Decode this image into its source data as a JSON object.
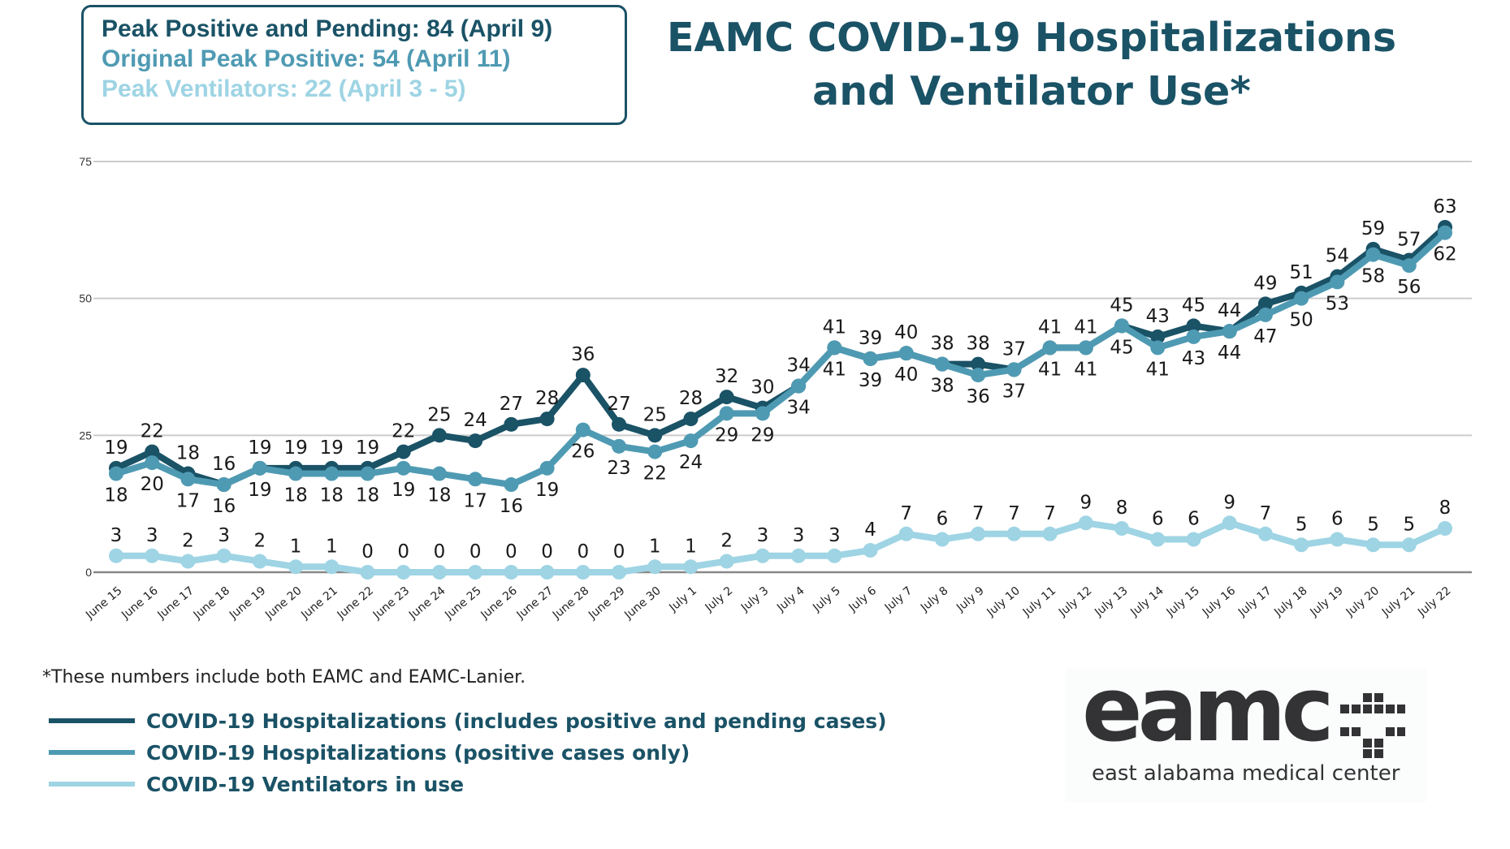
{
  "peaks": {
    "line1": {
      "text": "Peak Positive and Pending: 84 (April 9)",
      "color": "#1a5266"
    },
    "line2": {
      "text": "Original Peak Positive: 54 (April 11)",
      "color": "#4f9ab3"
    },
    "line3": {
      "text": "Peak Ventilators: 22 (April 3 - 5)",
      "color": "#9ed4e4"
    }
  },
  "title": {
    "line1": "EAMC COVID-19 Hospitalizations",
    "line2": "and Ventilator Use*"
  },
  "footnote": "*These numbers include both EAMC and EAMC-Lanier.",
  "legend": [
    {
      "label": "COVID-19 Hospitalizations (includes positive and pending cases)",
      "color": "#1a5266"
    },
    {
      "label": "COVID-19 Hospitalizations (positive cases only)",
      "color": "#4f9ab3"
    },
    {
      "label": "COVID-19 Ventilators in use",
      "color": "#9ed4e4"
    }
  ],
  "logo": {
    "wordmark": "eamc",
    "subtitle": "east alabama medical center",
    "icon": "medical-cross-grid-icon"
  },
  "chart_data": {
    "type": "line",
    "title": "EAMC COVID-19 Hospitalizations and Ventilator Use*",
    "xlabel": "",
    "ylabel": "",
    "ylim": [
      0,
      75
    ],
    "yticks": [
      0,
      25,
      50,
      75
    ],
    "grid": true,
    "legend_position": "bottom-left",
    "categories": [
      "June 15",
      "June 16",
      "June 17",
      "June 18",
      "June 19",
      "June 20",
      "June 21",
      "June 22",
      "June 23",
      "June 24",
      "June 25",
      "June 26",
      "June 27",
      "June 28",
      "June 29",
      "June 30",
      "July 1",
      "July 2",
      "July 3",
      "July 4",
      "July 5",
      "July 6",
      "July 7",
      "July 8",
      "July 9",
      "July 10",
      "July 11",
      "July 12",
      "July 13",
      "July 14",
      "July 15",
      "July 16",
      "July 17",
      "July 18",
      "July 19",
      "July 20",
      "July 21",
      "July 22"
    ],
    "series": [
      {
        "name": "COVID-19 Hospitalizations (includes positive and pending cases)",
        "color": "#1a5266",
        "label_position": "above",
        "values": [
          19,
          22,
          18,
          16,
          19,
          19,
          19,
          19,
          22,
          25,
          24,
          27,
          28,
          36,
          27,
          25,
          28,
          32,
          30,
          34,
          41,
          39,
          40,
          38,
          38,
          37,
          41,
          41,
          45,
          43,
          45,
          44,
          49,
          51,
          54,
          59,
          57,
          63
        ]
      },
      {
        "name": "COVID-19 Hospitalizations (positive cases only)",
        "color": "#4f9ab3",
        "label_position": "below",
        "values": [
          18,
          20,
          17,
          16,
          19,
          18,
          18,
          18,
          19,
          18,
          17,
          16,
          19,
          26,
          23,
          22,
          24,
          29,
          29,
          34,
          41,
          39,
          40,
          38,
          36,
          37,
          41,
          41,
          45,
          41,
          43,
          44,
          47,
          50,
          53,
          58,
          56,
          62
        ]
      },
      {
        "name": "COVID-19 Ventilators in use",
        "color": "#9ed4e4",
        "label_position": "above",
        "values": [
          3,
          3,
          2,
          3,
          2,
          1,
          1,
          0,
          0,
          0,
          0,
          0,
          0,
          0,
          0,
          1,
          1,
          2,
          3,
          3,
          3,
          4,
          7,
          6,
          7,
          7,
          7,
          9,
          8,
          6,
          6,
          9,
          7,
          5,
          6,
          5,
          5,
          8
        ]
      }
    ]
  }
}
